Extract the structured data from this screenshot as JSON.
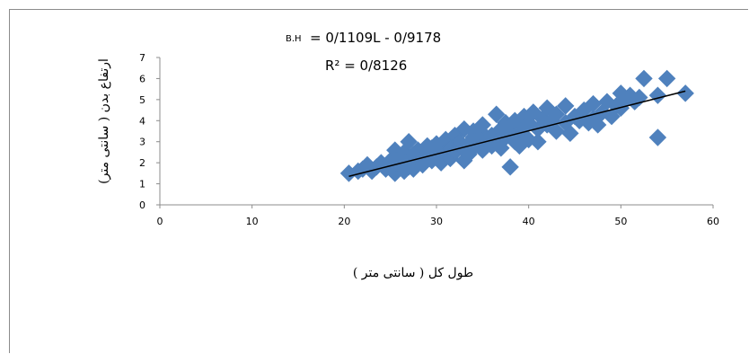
{
  "chart_data": {
    "type": "scatter",
    "title": "",
    "xlabel": "طول کل ( سانتی متر )",
    "ylabel": "ارتفاع بدن ( سانتی متر)",
    "xlim": [
      0,
      60
    ],
    "ylim": [
      0,
      7
    ],
    "x_ticks": [
      "0",
      "10",
      "20",
      "30",
      "40",
      "50",
      "60"
    ],
    "y_ticks": [
      "0",
      "1",
      "2",
      "3",
      "4",
      "5",
      "6",
      "7"
    ],
    "grid": false,
    "legend": "none",
    "marker_color": "#4F81BD",
    "trendline_color": "#000000",
    "equation_prefix": "B.H",
    "equation_rest": "= 0/1109L - 0/9178",
    "r_squared": "R² = 0/8126",
    "trendline": {
      "slope": 0.1109,
      "intercept": -0.9178,
      "x_range": [
        20.5,
        57
      ]
    },
    "points": [
      [
        20.5,
        1.5
      ],
      [
        21.5,
        1.6
      ],
      [
        22,
        1.7
      ],
      [
        22.5,
        1.9
      ],
      [
        23,
        1.6
      ],
      [
        23.5,
        1.8
      ],
      [
        24,
        2.0
      ],
      [
        24.5,
        1.7
      ],
      [
        25,
        2.1
      ],
      [
        25.5,
        1.5
      ],
      [
        25.5,
        2.6
      ],
      [
        26,
        1.9
      ],
      [
        26,
        2.3
      ],
      [
        26.5,
        1.6
      ],
      [
        26.5,
        2.5
      ],
      [
        27,
        1.8
      ],
      [
        27,
        2.2
      ],
      [
        27,
        3.0
      ],
      [
        27.5,
        2.4
      ],
      [
        27.5,
        1.7
      ],
      [
        28,
        2.6
      ],
      [
        28,
        2.0
      ],
      [
        28.5,
        2.3
      ],
      [
        28.5,
        1.9
      ],
      [
        29,
        2.5
      ],
      [
        29,
        2.8
      ],
      [
        29.5,
        2.1
      ],
      [
        29.5,
        2.7
      ],
      [
        30,
        2.3
      ],
      [
        30,
        2.9
      ],
      [
        30.5,
        2.0
      ],
      [
        30.5,
        2.6
      ],
      [
        31,
        2.4
      ],
      [
        31,
        3.1
      ],
      [
        31.5,
        2.7
      ],
      [
        31.5,
        2.2
      ],
      [
        32,
        2.5
      ],
      [
        32,
        3.3
      ],
      [
        32.5,
        2.8
      ],
      [
        32.5,
        3.0
      ],
      [
        33,
        2.1
      ],
      [
        33,
        2.6
      ],
      [
        33,
        3.6
      ],
      [
        33.5,
        2.9
      ],
      [
        33.5,
        2.4
      ],
      [
        34,
        3.2
      ],
      [
        34,
        2.7
      ],
      [
        34,
        3.5
      ],
      [
        34.5,
        3.0
      ],
      [
        35,
        2.6
      ],
      [
        35,
        3.4
      ],
      [
        35,
        3.8
      ],
      [
        35.5,
        3.1
      ],
      [
        36,
        2.8
      ],
      [
        36,
        3.3
      ],
      [
        36.5,
        4.3
      ],
      [
        36.5,
        3.0
      ],
      [
        37,
        3.6
      ],
      [
        37,
        2.7
      ],
      [
        37.5,
        3.9
      ],
      [
        37.5,
        3.2
      ],
      [
        38,
        1.8
      ],
      [
        38,
        3.5
      ],
      [
        38.5,
        3.0
      ],
      [
        38.5,
        4.0
      ],
      [
        39,
        3.4
      ],
      [
        39,
        2.8
      ],
      [
        39.5,
        4.2
      ],
      [
        39.5,
        3.7
      ],
      [
        40,
        3.1
      ],
      [
        40,
        3.9
      ],
      [
        40.5,
        4.4
      ],
      [
        41,
        3.6
      ],
      [
        41,
        3.0
      ],
      [
        41.5,
        4.1
      ],
      [
        42,
        4.6
      ],
      [
        42,
        3.8
      ],
      [
        42.5,
        4.0
      ],
      [
        43,
        3.5
      ],
      [
        43,
        4.3
      ],
      [
        44,
        3.9
      ],
      [
        44,
        4.7
      ],
      [
        44.5,
        3.4
      ],
      [
        45,
        4.2
      ],
      [
        45.5,
        4.0
      ],
      [
        46,
        4.5
      ],
      [
        46.5,
        3.9
      ],
      [
        47,
        4.8
      ],
      [
        47,
        4.1
      ],
      [
        47.5,
        3.8
      ],
      [
        48,
        4.4
      ],
      [
        48.5,
        4.9
      ],
      [
        49,
        4.2
      ],
      [
        49.5,
        4.7
      ],
      [
        50,
        5.3
      ],
      [
        50,
        4.6
      ],
      [
        50.5,
        5.0
      ],
      [
        51,
        5.2
      ],
      [
        51.5,
        4.9
      ],
      [
        52,
        5.1
      ],
      [
        52.5,
        6.0
      ],
      [
        54,
        5.2
      ],
      [
        54,
        3.2
      ],
      [
        55,
        6.0
      ],
      [
        57,
        5.3
      ]
    ]
  }
}
